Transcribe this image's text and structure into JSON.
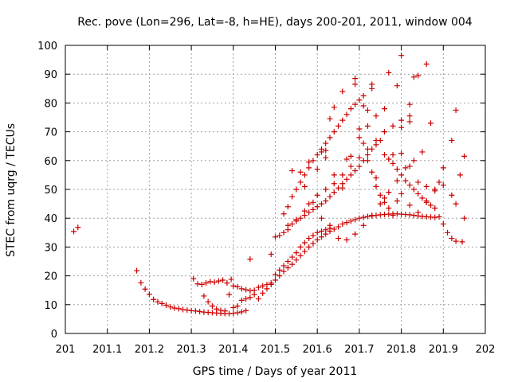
{
  "chart_data": {
    "type": "scatter",
    "title": "Rec. pove (Lon=296, Lat=-8, h=HE), days 200-201, 2011, window 004",
    "xlabel": "GPS time / Days of year 2011",
    "ylabel": "STEC from uqrg / TECUs",
    "xlim": [
      201,
      202
    ],
    "ylim": [
      0,
      100
    ],
    "xticks": [
      201,
      201.1,
      201.2,
      201.3,
      201.4,
      201.5,
      201.6,
      201.7,
      201.8,
      201.9,
      202
    ],
    "xtick_labels": [
      "201",
      "201.1",
      "201.2",
      "201.3",
      "201.4",
      "201.5",
      "201.6",
      "201.7",
      "201.8",
      "201.9",
      "202"
    ],
    "yticks": [
      0,
      10,
      20,
      30,
      40,
      50,
      60,
      70,
      80,
      90,
      100
    ],
    "ytick_labels": [
      "0",
      "10",
      "20",
      "30",
      "40",
      "50",
      "60",
      "70",
      "80",
      "90",
      "100"
    ],
    "grid": true,
    "marker": "+",
    "color": "#cc0000",
    "series": [
      {
        "name": "STEC",
        "points": [
          [
            201.02,
            35.4
          ],
          [
            201.03,
            36.8
          ],
          [
            201.17,
            21.8
          ],
          [
            201.18,
            17.6
          ],
          [
            201.19,
            15.4
          ],
          [
            201.2,
            13.6
          ],
          [
            201.21,
            11.8
          ],
          [
            201.22,
            11.0
          ],
          [
            201.23,
            10.4
          ],
          [
            201.24,
            9.8
          ],
          [
            201.25,
            9.2
          ],
          [
            201.26,
            8.8
          ],
          [
            201.27,
            8.6
          ],
          [
            201.28,
            8.3
          ],
          [
            201.29,
            8.1
          ],
          [
            201.3,
            7.9
          ],
          [
            201.31,
            7.8
          ],
          [
            201.32,
            7.6
          ],
          [
            201.33,
            7.4
          ],
          [
            201.34,
            7.3
          ],
          [
            201.35,
            7.2
          ],
          [
            201.36,
            7.1
          ],
          [
            201.37,
            7.0
          ],
          [
            201.38,
            6.9
          ],
          [
            201.39,
            6.9
          ],
          [
            201.4,
            7.0
          ],
          [
            201.41,
            7.2
          ],
          [
            201.42,
            7.5
          ],
          [
            201.43,
            7.9
          ],
          [
            201.305,
            19.0
          ],
          [
            201.315,
            17.2
          ],
          [
            201.325,
            17.0
          ],
          [
            201.335,
            17.5
          ],
          [
            201.345,
            18.0
          ],
          [
            201.355,
            17.8
          ],
          [
            201.365,
            18.2
          ],
          [
            201.375,
            18.5
          ],
          [
            201.385,
            17.5
          ],
          [
            201.395,
            18.8
          ],
          [
            201.4,
            16.5
          ],
          [
            201.41,
            16.2
          ],
          [
            201.42,
            15.5
          ],
          [
            201.43,
            15.2
          ],
          [
            201.44,
            14.8
          ],
          [
            201.45,
            15.0
          ],
          [
            201.46,
            16.0
          ],
          [
            201.47,
            16.5
          ],
          [
            201.48,
            17.0
          ],
          [
            201.49,
            17.5
          ],
          [
            201.5,
            18.5
          ],
          [
            201.51,
            20.0
          ],
          [
            201.52,
            21.5
          ],
          [
            201.53,
            22.8
          ],
          [
            201.54,
            24.0
          ],
          [
            201.55,
            25.5
          ],
          [
            201.56,
            27.0
          ],
          [
            201.57,
            28.5
          ],
          [
            201.58,
            30.0
          ],
          [
            201.59,
            31.2
          ],
          [
            201.6,
            32.5
          ],
          [
            201.61,
            33.5
          ],
          [
            201.62,
            34.5
          ],
          [
            201.63,
            35.5
          ],
          [
            201.64,
            36.2
          ],
          [
            201.65,
            37.0
          ],
          [
            201.66,
            38.0
          ],
          [
            201.67,
            38.5
          ],
          [
            201.68,
            39.0
          ],
          [
            201.69,
            39.5
          ],
          [
            201.7,
            40.0
          ],
          [
            201.71,
            40.3
          ],
          [
            201.72,
            40.6
          ],
          [
            201.73,
            40.8
          ],
          [
            201.74,
            41.0
          ],
          [
            201.75,
            41.2
          ],
          [
            201.76,
            41.3
          ],
          [
            201.77,
            41.4
          ],
          [
            201.78,
            41.5
          ],
          [
            201.79,
            41.5
          ],
          [
            201.8,
            41.4
          ],
          [
            201.81,
            41.3
          ],
          [
            201.82,
            41.2
          ],
          [
            201.83,
            41.0
          ],
          [
            201.84,
            40.8
          ],
          [
            201.85,
            40.6
          ],
          [
            201.86,
            40.5
          ],
          [
            201.87,
            40.4
          ],
          [
            201.88,
            40.3
          ],
          [
            201.89,
            40.5
          ],
          [
            201.9,
            38.0
          ],
          [
            201.91,
            35.0
          ],
          [
            201.92,
            33.0
          ],
          [
            201.93,
            32.0
          ],
          [
            201.945,
            31.8
          ],
          [
            201.33,
            13.0
          ],
          [
            201.34,
            11.0
          ],
          [
            201.35,
            9.5
          ],
          [
            201.36,
            8.5
          ],
          [
            201.37,
            8.0
          ],
          [
            201.38,
            7.8
          ],
          [
            201.39,
            13.5
          ],
          [
            201.4,
            9.0
          ],
          [
            201.41,
            9.5
          ],
          [
            201.42,
            11.5
          ],
          [
            201.43,
            12.0
          ],
          [
            201.44,
            12.5
          ],
          [
            201.45,
            13.5
          ],
          [
            201.46,
            12.0
          ],
          [
            201.47,
            14.0
          ],
          [
            201.48,
            15.5
          ],
          [
            201.49,
            17.0
          ],
          [
            201.5,
            20.5
          ],
          [
            201.51,
            22.0
          ],
          [
            201.52,
            23.5
          ],
          [
            201.53,
            25.0
          ],
          [
            201.54,
            26.5
          ],
          [
            201.55,
            28.0
          ],
          [
            201.56,
            30.0
          ],
          [
            201.57,
            31.5
          ],
          [
            201.58,
            33.0
          ],
          [
            201.59,
            34.0
          ],
          [
            201.6,
            35.0
          ],
          [
            201.61,
            35.5
          ],
          [
            201.62,
            36.0
          ],
          [
            201.63,
            36.5
          ],
          [
            201.44,
            25.8
          ],
          [
            201.49,
            27.5
          ],
          [
            201.5,
            33.5
          ],
          [
            201.51,
            34.0
          ],
          [
            201.52,
            35.0
          ],
          [
            201.53,
            36.0
          ],
          [
            201.54,
            38.0
          ],
          [
            201.55,
            39.0
          ],
          [
            201.56,
            40.0
          ],
          [
            201.57,
            41.0
          ],
          [
            201.58,
            42.0
          ],
          [
            201.59,
            43.0
          ],
          [
            201.6,
            44.0
          ],
          [
            201.61,
            45.0
          ],
          [
            201.62,
            46.0
          ],
          [
            201.63,
            47.5
          ],
          [
            201.64,
            49.0
          ],
          [
            201.65,
            50.5
          ],
          [
            201.66,
            52.0
          ],
          [
            201.67,
            53.5
          ],
          [
            201.68,
            55.0
          ],
          [
            201.69,
            56.5
          ],
          [
            201.7,
            58.0
          ],
          [
            201.71,
            60.0
          ],
          [
            201.72,
            62.0
          ],
          [
            201.73,
            64.0
          ],
          [
            201.74,
            65.5
          ],
          [
            201.75,
            67.0
          ],
          [
            201.76,
            62.0
          ],
          [
            201.77,
            60.5
          ],
          [
            201.78,
            59.0
          ],
          [
            201.79,
            57.0
          ],
          [
            201.8,
            55.0
          ],
          [
            201.81,
            53.0
          ],
          [
            201.82,
            51.5
          ],
          [
            201.83,
            50.0
          ],
          [
            201.84,
            48.5
          ],
          [
            201.85,
            47.0
          ],
          [
            201.86,
            45.5
          ],
          [
            201.87,
            44.5
          ],
          [
            201.88,
            43.5
          ],
          [
            201.52,
            41.5
          ],
          [
            201.53,
            44.0
          ],
          [
            201.54,
            47.5
          ],
          [
            201.55,
            50.0
          ],
          [
            201.56,
            52.5
          ],
          [
            201.57,
            55.0
          ],
          [
            201.58,
            57.5
          ],
          [
            201.59,
            60.0
          ],
          [
            201.6,
            62.0
          ],
          [
            201.61,
            64.0
          ],
          [
            201.62,
            66.0
          ],
          [
            201.63,
            68.0
          ],
          [
            201.64,
            70.0
          ],
          [
            201.65,
            72.0
          ],
          [
            201.66,
            74.0
          ],
          [
            201.67,
            76.0
          ],
          [
            201.68,
            78.0
          ],
          [
            201.69,
            79.5
          ],
          [
            201.7,
            81.0
          ],
          [
            201.71,
            82.5
          ],
          [
            201.53,
            37.5
          ],
          [
            201.55,
            39.5
          ],
          [
            201.57,
            42.5
          ],
          [
            201.58,
            45.0
          ],
          [
            201.6,
            48.0
          ],
          [
            201.62,
            50.0
          ],
          [
            201.64,
            52.0
          ],
          [
            201.66,
            55.0
          ],
          [
            201.68,
            58.0
          ],
          [
            201.7,
            61.0
          ],
          [
            201.72,
            64.0
          ],
          [
            201.74,
            67.0
          ],
          [
            201.76,
            70.0
          ],
          [
            201.78,
            72.0
          ],
          [
            201.8,
            74.0
          ],
          [
            201.82,
            75.5
          ],
          [
            201.54,
            56.5
          ],
          [
            201.56,
            56.0
          ],
          [
            201.57,
            51.0
          ],
          [
            201.59,
            45.5
          ],
          [
            201.61,
            40.0
          ],
          [
            201.63,
            37.5
          ],
          [
            201.65,
            33.0
          ],
          [
            201.67,
            32.5
          ],
          [
            201.69,
            34.5
          ],
          [
            201.71,
            37.5
          ],
          [
            201.73,
            41.0
          ],
          [
            201.75,
            45.0
          ],
          [
            201.77,
            49.0
          ],
          [
            201.79,
            53.0
          ],
          [
            201.81,
            57.5
          ],
          [
            201.83,
            60.0
          ],
          [
            201.85,
            63.0
          ],
          [
            201.62,
            63.5
          ],
          [
            201.63,
            74.5
          ],
          [
            201.64,
            78.5
          ],
          [
            201.66,
            84.0
          ],
          [
            201.69,
            88.5
          ],
          [
            201.69,
            86.5
          ],
          [
            201.71,
            79.0
          ],
          [
            201.72,
            77.5
          ],
          [
            201.73,
            86.5
          ],
          [
            201.73,
            85.0
          ],
          [
            201.77,
            90.5
          ],
          [
            201.79,
            86.0
          ],
          [
            201.8,
            96.5
          ],
          [
            201.82,
            79.5
          ],
          [
            201.83,
            89.0
          ],
          [
            201.84,
            89.5
          ],
          [
            201.86,
            93.5
          ],
          [
            201.87,
            73.0
          ],
          [
            201.8,
            71.5
          ],
          [
            201.82,
            73.5
          ],
          [
            201.74,
            51.0
          ],
          [
            201.76,
            47.0
          ],
          [
            201.77,
            43.5
          ],
          [
            201.78,
            41.0
          ],
          [
            201.79,
            46.0
          ],
          [
            201.8,
            48.5
          ],
          [
            201.82,
            44.5
          ],
          [
            201.84,
            42.0
          ],
          [
            201.86,
            46.0
          ],
          [
            201.88,
            49.5
          ],
          [
            201.89,
            52.5
          ],
          [
            201.9,
            57.5
          ],
          [
            201.92,
            67.0
          ],
          [
            201.93,
            77.5
          ],
          [
            201.94,
            55.0
          ],
          [
            201.95,
            61.5
          ],
          [
            201.92,
            48.0
          ],
          [
            201.93,
            45.0
          ],
          [
            201.95,
            40.0
          ],
          [
            201.58,
            59.5
          ],
          [
            201.6,
            57.0
          ],
          [
            201.61,
            63.0
          ],
          [
            201.62,
            61.0
          ],
          [
            201.64,
            55.0
          ],
          [
            201.66,
            50.5
          ],
          [
            201.67,
            60.5
          ],
          [
            201.68,
            61.5
          ],
          [
            201.7,
            71.0
          ],
          [
            201.72,
            72.0
          ],
          [
            201.74,
            75.5
          ],
          [
            201.76,
            78.0
          ],
          [
            201.7,
            68.0
          ],
          [
            201.71,
            66.0
          ],
          [
            201.72,
            60.0
          ],
          [
            201.73,
            56.0
          ],
          [
            201.74,
            54.0
          ],
          [
            201.75,
            48.0
          ],
          [
            201.76,
            45.5
          ],
          [
            201.78,
            62.0
          ],
          [
            201.8,
            62.5
          ],
          [
            201.82,
            58.0
          ],
          [
            201.84,
            52.5
          ],
          [
            201.86,
            51.0
          ],
          [
            201.88,
            50.0
          ],
          [
            201.9,
            51.5
          ]
        ]
      }
    ]
  }
}
